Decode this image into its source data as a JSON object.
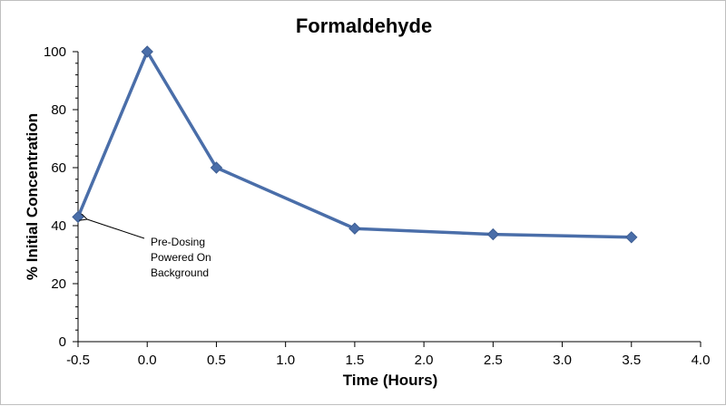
{
  "chart_data": {
    "type": "line",
    "title": "Formaldehyde",
    "xlabel": "Time (Hours)",
    "ylabel": "% Initial Concentration",
    "xlim": [
      -0.5,
      4.0
    ],
    "ylim": [
      0,
      100
    ],
    "x_ticks": [
      "-0.5",
      "0.0",
      "0.5",
      "1.0",
      "1.5",
      "2.0",
      "2.5",
      "3.0",
      "3.5",
      "4.0"
    ],
    "y_ticks": [
      "0",
      "20",
      "40",
      "60",
      "80",
      "100"
    ],
    "grid": false,
    "legend": "none",
    "series": [
      {
        "x": [
          -0.5,
          0.0,
          0.5,
          1.5,
          2.5,
          3.5
        ],
        "y": [
          43,
          100,
          60,
          39,
          37,
          36
        ],
        "color": "#4a6ea9",
        "marker": "diamond"
      }
    ],
    "annotations": [
      {
        "lines": [
          "Pre-Dosing",
          "Powered On",
          "Background"
        ],
        "target_x": -0.5,
        "target_y": 43
      }
    ]
  }
}
